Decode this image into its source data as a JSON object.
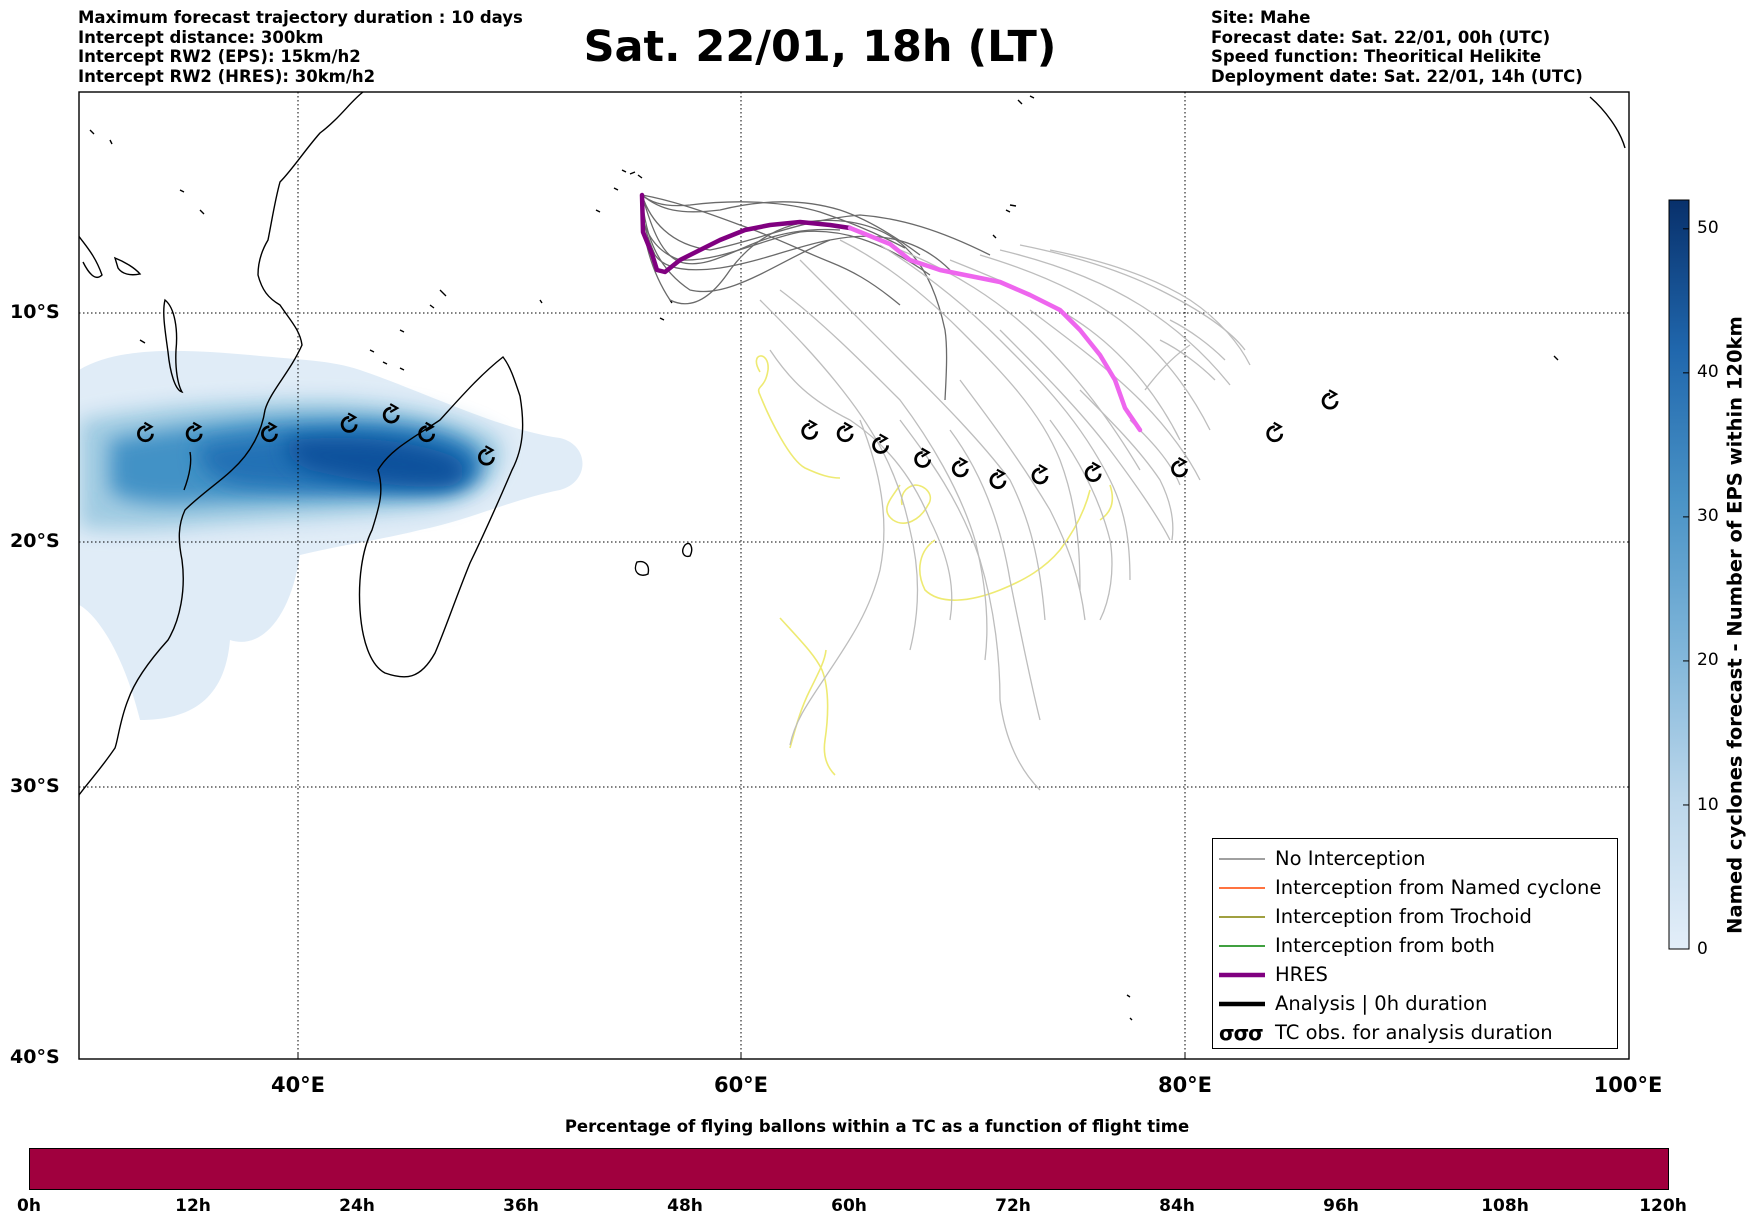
{
  "header": {
    "left_lines": [
      "Maximum forecast trajectory duration : 10 days",
      "Intercept distance: 300km",
      "Intercept RW2 (EPS):  15km/h2",
      "Intercept RW2 (HRES): 30km/h2"
    ],
    "title": "Sat. 22/01, 18h (LT)",
    "right_lines": [
      "Site: Mahe",
      "Forecast date: Sat. 22/01, 00h (UTC)",
      "Speed function: Theoritical Helikite",
      "Deployment date: Sat. 22/01, 14h (UTC)"
    ]
  },
  "map": {
    "lat_labels": [
      "10°S",
      "20°S",
      "30°S",
      "40°S"
    ],
    "lon_labels": [
      "40°E",
      "60°E",
      "80°E",
      "100°E"
    ],
    "lon_range": [
      30,
      100
    ],
    "lat_range": [
      -40,
      -0.7
    ],
    "grid": "dotted",
    "colors": {
      "eps_track": "#bdbdbd",
      "eps_track_dark": "#6a6a6a",
      "hres_early": "#800080",
      "hres_late": "#ee66ee",
      "trochoid_track": "#eeea72",
      "density": "#08306b"
    }
  },
  "legend": {
    "items": [
      {
        "label": "No Interception",
        "color": "#808080",
        "kind": "thin-line"
      },
      {
        "label": "Interception from Named cyclone",
        "color": "#ff4500",
        "kind": "thin-line"
      },
      {
        "label": "Interception from Trochoid",
        "color": "#808000",
        "kind": "thin-line"
      },
      {
        "label": "Interception from both",
        "color": "#008000",
        "kind": "thin-line"
      },
      {
        "label": "HRES",
        "color": "#800080",
        "kind": "thick-line"
      },
      {
        "label": "Analysis | 0h duration",
        "color": "#000000",
        "kind": "thick-line"
      },
      {
        "label": "TC obs. for analysis duration",
        "color": "#000000",
        "kind": "cyclone-symbols",
        "symbol_text": "σσσ"
      }
    ]
  },
  "colorbar": {
    "label": "Named cyclones forecast - Number of EPS within 120km",
    "ticks": [
      "50",
      "40",
      "30",
      "20",
      "10",
      "0"
    ],
    "tick_values": [
      50,
      40,
      30,
      20,
      10,
      0
    ],
    "range": [
      0,
      52
    ],
    "color_low": "#e3eef9",
    "color_high": "#08306b"
  },
  "bottom_bar": {
    "title": "Percentage of flying ballons within a TC as a function of flight time",
    "ticks": [
      "0h",
      "12h",
      "24h",
      "36h",
      "48h",
      "60h",
      "72h",
      "84h",
      "96h",
      "108h",
      "120h"
    ],
    "fill_color": "#a0003e"
  },
  "tc_observations": [
    {
      "lon": 33.0,
      "lat": -15.7
    },
    {
      "lon": 35.2,
      "lat": -15.7
    },
    {
      "lon": 38.6,
      "lat": -15.7
    },
    {
      "lon": 42.2,
      "lat": -15.3
    },
    {
      "lon": 44.1,
      "lat": -14.9
    },
    {
      "lon": 45.7,
      "lat": -15.7
    },
    {
      "lon": 48.4,
      "lat": -16.7
    },
    {
      "lon": 63.0,
      "lat": -15.6
    },
    {
      "lon": 64.6,
      "lat": -15.7
    },
    {
      "lon": 66.2,
      "lat": -16.2
    },
    {
      "lon": 68.1,
      "lat": -16.8
    },
    {
      "lon": 69.8,
      "lat": -17.2
    },
    {
      "lon": 71.5,
      "lat": -17.7
    },
    {
      "lon": 73.4,
      "lat": -17.5
    },
    {
      "lon": 75.8,
      "lat": -17.4
    },
    {
      "lon": 79.7,
      "lat": -17.2
    },
    {
      "lon": 84.0,
      "lat": -15.7
    },
    {
      "lon": 86.5,
      "lat": -14.3
    }
  ],
  "hres_track": [
    [
      55.5,
      -4.3
    ],
    [
      55.7,
      -6.6
    ],
    [
      56.3,
      -7.4
    ],
    [
      57.6,
      -7.0
    ],
    [
      59.2,
      -6.0
    ],
    [
      61.1,
      -5.6
    ],
    [
      62.8,
      -5.6
    ],
    [
      64.3,
      -5.8
    ],
    [
      65.6,
      -6.1
    ],
    [
      67.2,
      -6.7
    ],
    [
      69.5,
      -7.5
    ],
    [
      72.3,
      -8.0
    ],
    [
      74.5,
      -8.8
    ],
    [
      76.3,
      -10.0
    ],
    [
      77.4,
      -11.6
    ],
    [
      78.1,
      -13.0
    ],
    [
      78.1,
      -14.0
    ]
  ]
}
